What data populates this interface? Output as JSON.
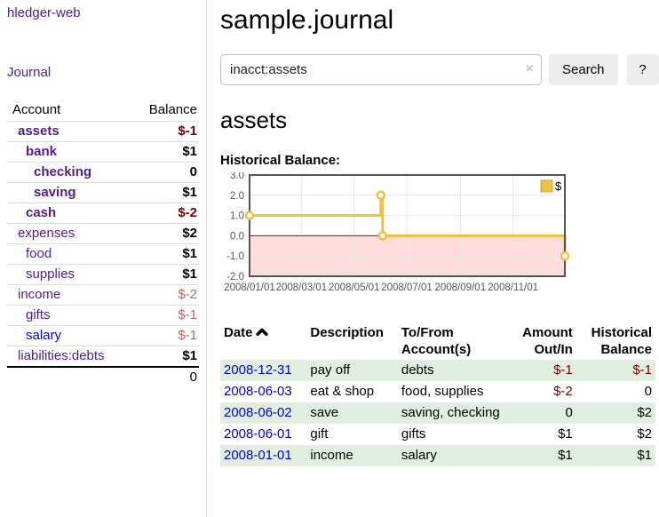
{
  "sidebar": {
    "app_title": "hledger-web",
    "journal_label": "Journal",
    "accounts_table": {
      "headers": {
        "account": "Account",
        "balance": "Balance"
      },
      "rows": [
        {
          "name": "assets",
          "balance": "$-1",
          "level": 1,
          "bold": true,
          "balance_style": "neg-strong"
        },
        {
          "name": "bank",
          "balance": "$1",
          "level": 2,
          "bold": true,
          "balance_style": ""
        },
        {
          "name": "checking",
          "balance": "0",
          "level": 3,
          "bold": true,
          "balance_style": ""
        },
        {
          "name": "saving",
          "balance": "$1",
          "level": 3,
          "bold": true,
          "balance_style": ""
        },
        {
          "name": "cash",
          "balance": "$-2",
          "level": 2,
          "bold": true,
          "balance_style": "neg-strong"
        },
        {
          "name": "expenses",
          "balance": "$2",
          "level": 1,
          "bold": false,
          "balance_style": ""
        },
        {
          "name": "food",
          "balance": "$1",
          "level": 2,
          "bold": false,
          "balance_style": ""
        },
        {
          "name": "supplies",
          "balance": "$1",
          "level": 2,
          "bold": false,
          "balance_style": ""
        },
        {
          "name": "income",
          "balance": "$-2",
          "level": 1,
          "bold": false,
          "balance_style": "neg-muted"
        },
        {
          "name": "gifts",
          "balance": "$-1",
          "level": 2,
          "bold": false,
          "balance_style": "neg-muted"
        },
        {
          "name": "salary",
          "balance": "$-1",
          "level": 2,
          "bold": false,
          "balance_style": "neg-muted",
          "link_blue": true
        },
        {
          "name": "liabilities:debts",
          "balance": "$1",
          "level": 1,
          "bold": false,
          "balance_style": ""
        }
      ],
      "total": "0"
    }
  },
  "header": {
    "title": "sample.journal"
  },
  "search": {
    "value": "inacct:assets",
    "clear_icon": "×",
    "button_label": "Search",
    "help_label": "?"
  },
  "account_page": {
    "heading": "assets",
    "chart_label": "Historical Balance:"
  },
  "chart_data": {
    "type": "line",
    "style": "step",
    "series": [
      {
        "name": "$",
        "color": "#edc240",
        "points": [
          {
            "date": "2008-01-01",
            "day": 0,
            "value": 1.0
          },
          {
            "date": "2008-06-01",
            "day": 152,
            "value": 2.0
          },
          {
            "date": "2008-06-03",
            "day": 154,
            "value": 0.0
          },
          {
            "date": "2008-12-31",
            "day": 365,
            "value": -1.0
          }
        ]
      }
    ],
    "ylim": [
      -2.0,
      3.0
    ],
    "yticks": [
      3.0,
      2.0,
      1.0,
      0.0,
      -1.0,
      -2.0
    ],
    "ytick_labels": [
      "3.0",
      "2.0",
      "1.0",
      "0.0",
      "-1.0",
      "-2.0"
    ],
    "xticks": [
      {
        "label": "2008/01/01",
        "day": 0
      },
      {
        "label": "2008/03/01",
        "day": 60
      },
      {
        "label": "2008/05/01",
        "day": 121
      },
      {
        "label": "2008/07/01",
        "day": 182
      },
      {
        "label": "2008/09/01",
        "day": 244
      },
      {
        "label": "2008/11/01",
        "day": 305
      }
    ],
    "x_range_days": 365,
    "legend_label": "$",
    "legend_position": "top-right",
    "grid": true,
    "colors": {
      "grid_line": "#e6e6e6",
      "border": "#545454",
      "tick_text": "#545454",
      "negative_region": "#ffdddd",
      "zero_line": "#990000",
      "marker_fill": "#ffffff"
    }
  },
  "register_table": {
    "headers": {
      "date": "Date",
      "description": "Description",
      "accounts": "To/From Account(s)",
      "amount": "Amount Out/In",
      "balance": "Historical Balance"
    },
    "rows": [
      {
        "date": "2008-12-31",
        "description": "pay off",
        "accounts": "debts",
        "amount": "$-1",
        "amount_negative": true,
        "balance": "$-1",
        "balance_negative": true
      },
      {
        "date": "2008-06-03",
        "description": "eat & shop",
        "accounts": "food, supplies",
        "amount": "$-2",
        "amount_negative": true,
        "balance": "0",
        "balance_negative": false
      },
      {
        "date": "2008-06-02",
        "description": "save",
        "accounts": "saving, checking",
        "amount": "0",
        "amount_negative": false,
        "balance": "$2",
        "balance_negative": false
      },
      {
        "date": "2008-06-01",
        "description": "gift",
        "accounts": "gifts",
        "amount": "$1",
        "amount_negative": false,
        "balance": "$2",
        "balance_negative": false
      },
      {
        "date": "2008-01-01",
        "description": "income",
        "accounts": "salary",
        "amount": "$1",
        "amount_negative": false,
        "balance": "$1",
        "balance_negative": false
      }
    ]
  }
}
